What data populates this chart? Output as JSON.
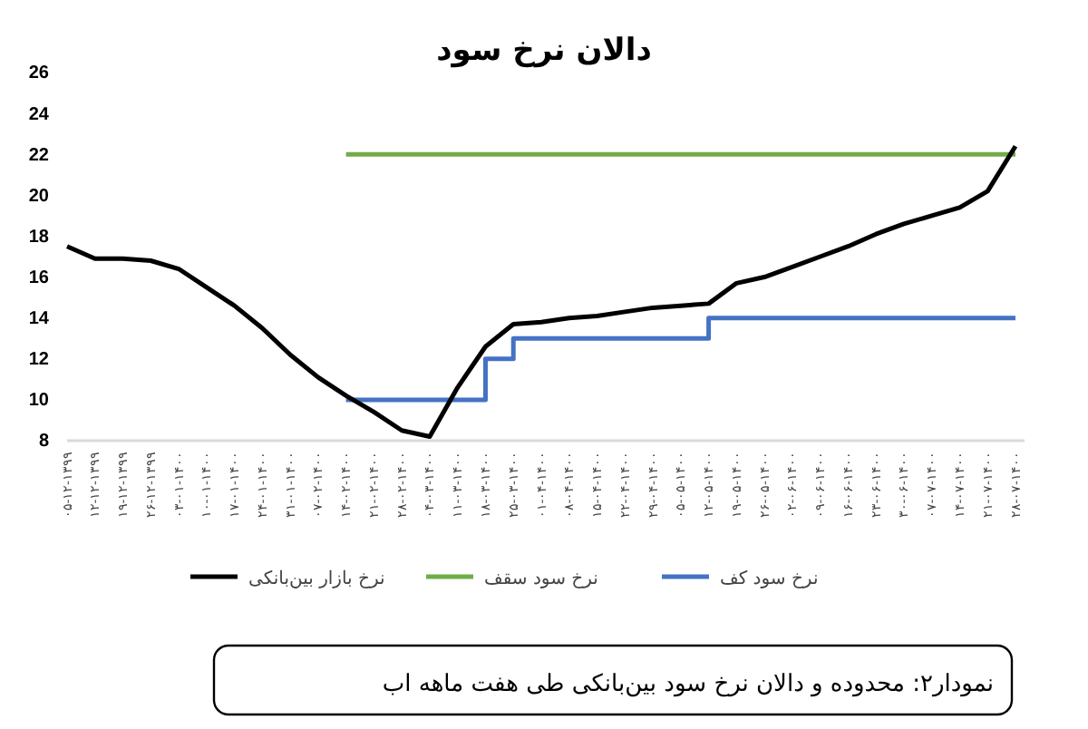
{
  "chart_data": {
    "type": "line",
    "title": "دالان نرخ سود",
    "annotations": [
      "نمودار۲:  محدوده و دالان نرخ سود بین‌بانکی طی هفت ماهه اب"
    ],
    "categories": [
      "۰۵-۱۲-۱۳۹۹",
      "۱۲-۱۲-۱۳۹۹",
      "۱۹-۱۲-۱۳۹۹",
      "۲۶-۱۲-۱۳۹۹",
      "۰۳-۰۱-۱۴۰۰",
      "۱۰-۰۱-۱۴۰۰",
      "۱۷-۰۱-۱۴۰۰",
      "۲۴-۰۱-۱۴۰۰",
      "۳۱-۰۱-۱۴۰۰",
      "۰۷-۰۲-۱۴۰۰",
      "۱۴-۰۲-۱۴۰۰",
      "۲۱-۰۲-۱۴۰۰",
      "۲۸-۰۲-۱۴۰۰",
      "۰۴-۰۳-۱۴۰۰",
      "۱۱-۰۳-۱۴۰۰",
      "۱۸-۰۳-۱۴۰۰",
      "۲۵-۰۳-۱۴۰۰",
      "۰۱-۰۴-۱۴۰۰",
      "۰۸-۰۴-۱۴۰۰",
      "۱۵-۰۴-۱۴۰۰",
      "۲۲-۰۴-۱۴۰۰",
      "۲۹-۰۴-۱۴۰۰",
      "۰۵-۰۵-۱۴۰۰",
      "۱۲-۰۵-۱۴۰۰",
      "۱۹-۰۵-۱۴۰۰",
      "۲۶-۰۵-۱۴۰۰",
      "۰۲-۰۶-۱۴۰۰",
      "۰۹-۰۶-۱۴۰۰",
      "۱۶-۰۶-۱۴۰۰",
      "۲۳-۰۶-۱۴۰۰",
      "۳۰-۰۶-۱۴۰۰",
      "۰۷-۰۷-۱۴۰۰",
      "۱۴-۰۷-۱۴۰۰",
      "۲۱-۰۷-۱۴۰۰",
      "۲۸-۰۷-۱۴۰۰"
    ],
    "ylim": [
      8,
      26
    ],
    "yticks": [
      8,
      10,
      12,
      14,
      16,
      18,
      20,
      22,
      24,
      26
    ],
    "grid": false,
    "legend": "bottom",
    "marker": "none",
    "line_style": "solid",
    "series": [
      {
        "name": "نرخ بازار بین‌بانکی",
        "color": "#000000",
        "values": [
          17.5,
          16.9,
          16.9,
          16.8,
          16.4,
          15.5,
          14.6,
          13.5,
          12.2,
          11.1,
          10.2,
          9.4,
          8.5,
          8.2,
          10.6,
          12.6,
          13.7,
          13.8,
          14.0,
          14.1,
          14.3,
          14.5,
          14.6,
          14.7,
          15.7,
          16.0,
          16.5,
          17.0,
          17.5,
          18.1,
          18.6,
          19.0,
          19.4,
          20.2,
          22.4
        ]
      },
      {
        "name": "نرخ سود سقف",
        "color": "#70ad47",
        "values": [
          null,
          null,
          null,
          null,
          null,
          null,
          null,
          null,
          null,
          null,
          22,
          22,
          22,
          22,
          22,
          22,
          22,
          22,
          22,
          22,
          22,
          22,
          22,
          22,
          22,
          22,
          22,
          22,
          22,
          22,
          22,
          22,
          22,
          22,
          22
        ]
      },
      {
        "name": "نرخ سود کف",
        "color": "#4472c4",
        "type": "step",
        "values": [
          null,
          null,
          null,
          null,
          null,
          null,
          null,
          null,
          null,
          null,
          10,
          10,
          10,
          10,
          10,
          12,
          13,
          13,
          13,
          13,
          13,
          13,
          13,
          14,
          14,
          14,
          14,
          14,
          14,
          14,
          14,
          14,
          14,
          14,
          14
        ]
      }
    ]
  }
}
